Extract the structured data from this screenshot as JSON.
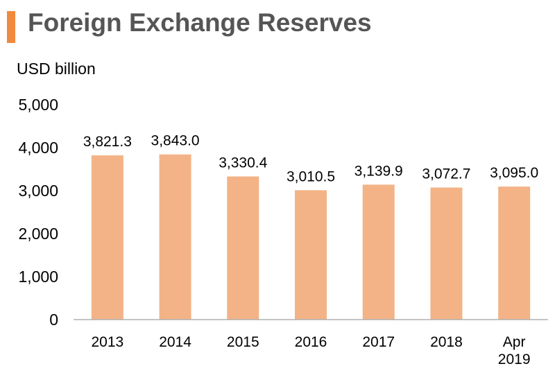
{
  "header": {
    "title": "Foreign Exchange Reserves",
    "accent_color": "#F08A3E"
  },
  "chart_data": {
    "type": "bar",
    "title": "Foreign Exchange Reserves",
    "xlabel": "",
    "ylabel": "USD billion",
    "categories": [
      "2013",
      "2014",
      "2015",
      "2016",
      "2017",
      "2018",
      "Apr 2019"
    ],
    "category_lines": [
      [
        "2013"
      ],
      [
        "2014"
      ],
      [
        "2015"
      ],
      [
        "2016"
      ],
      [
        "2017"
      ],
      [
        "2018"
      ],
      [
        "Apr",
        "2019"
      ]
    ],
    "values": [
      3821.3,
      3843.0,
      3330.4,
      3010.5,
      3139.9,
      3072.7,
      3095.0
    ],
    "value_labels": [
      "3,821.3",
      "3,843.0",
      "3,330.4",
      "3,010.5",
      "3,139.9",
      "3,072.7",
      "3,095.0"
    ],
    "ylim": [
      0,
      5000
    ],
    "yticks": [
      0,
      1000,
      2000,
      3000,
      4000,
      5000
    ],
    "ytick_labels": [
      "0",
      "1,000",
      "2,000",
      "3,000",
      "4,000",
      "5,000"
    ],
    "bar_color": "#F3B386",
    "grid": false,
    "legend": "none"
  }
}
